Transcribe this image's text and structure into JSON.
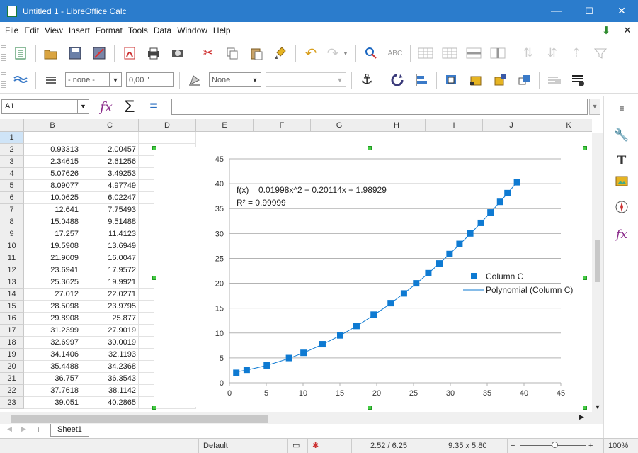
{
  "window": {
    "title": "Untitled 1 - LibreOffice Calc",
    "minimize": "—",
    "maximize": "☐",
    "close": "✕"
  },
  "menu": [
    "File",
    "Edit",
    "View",
    "Insert",
    "Format",
    "Tools",
    "Data",
    "Window",
    "Help"
  ],
  "menu_right": {
    "download": "⬇",
    "close": "✕"
  },
  "toolbar2": {
    "border_style": "- none -",
    "border_width": "0,00 \"",
    "line_style": "None",
    "line_color": ""
  },
  "namebox": "A1",
  "formula": "",
  "columns": [
    "B",
    "C",
    "D",
    "E",
    "F",
    "G",
    "H",
    "I",
    "J",
    "K"
  ],
  "rows": [
    {
      "n": "1",
      "b": "",
      "c": ""
    },
    {
      "n": "2",
      "b": "0.93313",
      "c": "2.00457"
    },
    {
      "n": "3",
      "b": "2.34615",
      "c": "2.61256"
    },
    {
      "n": "4",
      "b": "5.07626",
      "c": "3.49253"
    },
    {
      "n": "5",
      "b": "8.09077",
      "c": "4.97749"
    },
    {
      "n": "6",
      "b": "10.0625",
      "c": "6.02247"
    },
    {
      "n": "7",
      "b": "12.641",
      "c": "7.75493"
    },
    {
      "n": "8",
      "b": "15.0488",
      "c": "9.51488"
    },
    {
      "n": "9",
      "b": "17.257",
      "c": "11.4123"
    },
    {
      "n": "10",
      "b": "19.5908",
      "c": "13.6949"
    },
    {
      "n": "11",
      "b": "21.9009",
      "c": "16.0047"
    },
    {
      "n": "12",
      "b": "23.6941",
      "c": "17.9572"
    },
    {
      "n": "13",
      "b": "25.3625",
      "c": "19.9921"
    },
    {
      "n": "14",
      "b": "27.012",
      "c": "22.0271"
    },
    {
      "n": "15",
      "b": "28.5098",
      "c": "23.9795"
    },
    {
      "n": "16",
      "b": "29.8908",
      "c": "25.877"
    },
    {
      "n": "17",
      "b": "31.2399",
      "c": "27.9019"
    },
    {
      "n": "18",
      "b": "32.6997",
      "c": "30.0019"
    },
    {
      "n": "19",
      "b": "34.1406",
      "c": "32.1193"
    },
    {
      "n": "20",
      "b": "35.4488",
      "c": "34.2368"
    },
    {
      "n": "21",
      "b": "36.757",
      "c": "36.3543"
    },
    {
      "n": "22",
      "b": "37.7618",
      "c": "38.1142"
    },
    {
      "n": "23",
      "b": "39.051",
      "c": "40.2865"
    }
  ],
  "chart_data": {
    "type": "scatter",
    "series": [
      {
        "name": "Column C",
        "marker": "square",
        "color": "#0e7ad2",
        "x": [
          0.93313,
          2.34615,
          5.07626,
          8.09077,
          10.0625,
          12.641,
          15.0488,
          17.257,
          19.5908,
          21.9009,
          23.6941,
          25.3625,
          27.012,
          28.5098,
          29.8908,
          31.2399,
          32.6997,
          34.1406,
          35.4488,
          36.757,
          37.7618,
          39.051
        ],
        "y": [
          2.00457,
          2.61256,
          3.49253,
          4.97749,
          6.02247,
          7.75493,
          9.51488,
          11.4123,
          13.6949,
          16.0047,
          17.9572,
          19.9921,
          22.0271,
          23.9795,
          25.877,
          27.9019,
          30.0019,
          32.1193,
          34.2368,
          36.3543,
          38.1142,
          40.2865
        ]
      },
      {
        "name": "Polynomial (Column C)",
        "type": "trendline",
        "color": "#0e7ad2",
        "coefficients": [
          1.98929,
          0.20114,
          0.01998
        ]
      }
    ],
    "equation": "f(x) = 0.01998x^2 + 0.20114x + 1.98929",
    "r_squared": "R² = 0.99999",
    "xlim": [
      0,
      45
    ],
    "ylim": [
      0,
      45
    ],
    "xticks": [
      "0",
      "5",
      "10",
      "15",
      "20",
      "25",
      "30",
      "35",
      "40",
      "45"
    ],
    "yticks": [
      "0",
      "5",
      "10",
      "15",
      "20",
      "25",
      "30",
      "35",
      "40",
      "45"
    ],
    "grid": "horizontal",
    "legend": "right"
  },
  "sheet_tab": "Sheet1",
  "status": {
    "style": "Default",
    "position": "2.52 / 6.25",
    "size": "9.35 x 5.80",
    "zoom": "100%"
  }
}
